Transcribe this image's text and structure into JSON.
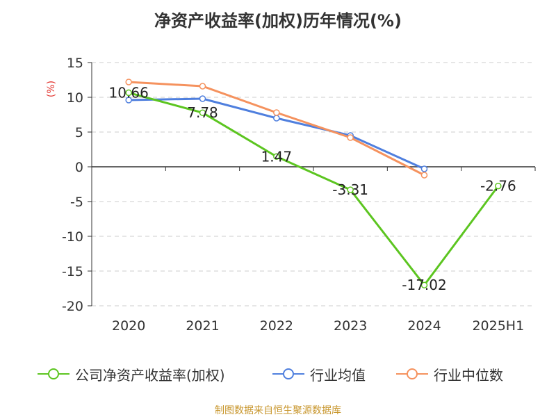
{
  "title": "净资产收益率(加权)历年情况(%)",
  "source": "制图数据来自恒生聚源数据库",
  "colors": {
    "company": "#5cc520",
    "industry_avg": "#4f7fde",
    "industry_median": "#f5925e",
    "ylabel": "#e3342f",
    "grid": "#cccccc",
    "axis": "#333333"
  },
  "chart_data": {
    "type": "line",
    "title": "净资产收益率(加权)历年情况(%)",
    "ylabel": "(%)",
    "xlabel": "",
    "categories": [
      "2020",
      "2021",
      "2022",
      "2023",
      "2024",
      "2025H1"
    ],
    "ylim": [
      -20,
      15
    ],
    "yticks": [
      15,
      10,
      5,
      0,
      -5,
      -10,
      -15,
      -20
    ],
    "grid": true,
    "legend_position": "bottom",
    "series": [
      {
        "name": "公司净资产收益率(加权)",
        "color": "#5cc520",
        "values": [
          10.66,
          7.78,
          1.47,
          -3.31,
          -17.02,
          -2.76
        ],
        "data_labels": [
          "10.66",
          "7.78",
          "1.47",
          "-3.31",
          "-17.02",
          "-2.76"
        ]
      },
      {
        "name": "行业均值",
        "color": "#4f7fde",
        "values": [
          9.6,
          9.8,
          7.0,
          4.5,
          -0.3,
          null
        ]
      },
      {
        "name": "行业中位数",
        "color": "#f5925e",
        "values": [
          12.2,
          11.6,
          7.8,
          4.2,
          -1.2,
          null
        ]
      }
    ]
  }
}
